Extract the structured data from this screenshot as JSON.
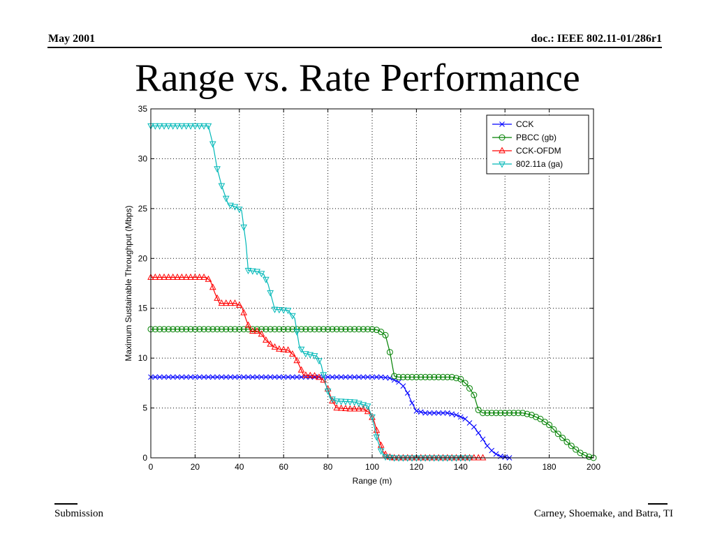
{
  "header": {
    "date": "May 2001",
    "doc": "doc.: IEEE 802.11-01/286r1"
  },
  "slide": {
    "title": "Range vs. Rate Performance"
  },
  "footer": {
    "left": "Submission",
    "right": "Carney, Shoemake, and Batra, TI"
  },
  "chart_data": {
    "type": "line",
    "title": "",
    "xlabel": "Range (m)",
    "ylabel": "Maximum Sustainable Throughput (Mbps)",
    "xlim": [
      0,
      200
    ],
    "ylim": [
      0,
      35
    ],
    "xticks": [
      0,
      20,
      40,
      60,
      80,
      100,
      120,
      140,
      160,
      180,
      200
    ],
    "yticks": [
      0,
      5,
      10,
      15,
      20,
      25,
      30,
      35
    ],
    "grid": true,
    "legend_position": "top-right",
    "series": [
      {
        "name": "CCK",
        "color": "#0000ff",
        "marker": "x",
        "points": [
          [
            0,
            8.1
          ],
          [
            100,
            8.1
          ],
          [
            104,
            8.1
          ],
          [
            108,
            8.0
          ],
          [
            112,
            7.6
          ],
          [
            114,
            7.2
          ],
          [
            116,
            6.5
          ],
          [
            118,
            5.5
          ],
          [
            120,
            4.7
          ],
          [
            124,
            4.5
          ],
          [
            134,
            4.5
          ],
          [
            138,
            4.3
          ],
          [
            142,
            3.9
          ],
          [
            146,
            3.1
          ],
          [
            149,
            2.2
          ],
          [
            152,
            1.2
          ],
          [
            155,
            0.5
          ],
          [
            158,
            0.15
          ],
          [
            162,
            0
          ]
        ]
      },
      {
        "name": "PBCC (gb)",
        "color": "#008000",
        "marker": "o",
        "points": [
          [
            0,
            12.9
          ],
          [
            100,
            12.9
          ],
          [
            103,
            12.8
          ],
          [
            106,
            12.3
          ],
          [
            108,
            10.6
          ],
          [
            110,
            8.2
          ],
          [
            112,
            8.1
          ],
          [
            136,
            8.1
          ],
          [
            140,
            7.9
          ],
          [
            143,
            7.3
          ],
          [
            146,
            6.3
          ],
          [
            148,
            4.8
          ],
          [
            150,
            4.5
          ],
          [
            168,
            4.5
          ],
          [
            172,
            4.3
          ],
          [
            176,
            3.9
          ],
          [
            180,
            3.3
          ],
          [
            184,
            2.4
          ],
          [
            188,
            1.6
          ],
          [
            191,
            1.0
          ],
          [
            194,
            0.5
          ],
          [
            197,
            0.15
          ],
          [
            200,
            0
          ]
        ]
      },
      {
        "name": "CCK-OFDM",
        "color": "#ff0000",
        "marker": "triangle-up",
        "points": [
          [
            0,
            18.1
          ],
          [
            25,
            18.1
          ],
          [
            27,
            17.7
          ],
          [
            29,
            16.5
          ],
          [
            31,
            15.5
          ],
          [
            38,
            15.5
          ],
          [
            41,
            15.2
          ],
          [
            43,
            13.9
          ],
          [
            45,
            12.7
          ],
          [
            48,
            12.7
          ],
          [
            50,
            12.4
          ],
          [
            52,
            11.8
          ],
          [
            55,
            11.2
          ],
          [
            58,
            10.9
          ],
          [
            62,
            10.8
          ],
          [
            65,
            10.2
          ],
          [
            67,
            9.3
          ],
          [
            69,
            8.3
          ],
          [
            75,
            8.2
          ],
          [
            78,
            7.8
          ],
          [
            80,
            6.9
          ],
          [
            82,
            5.7
          ],
          [
            84,
            5.0
          ],
          [
            90,
            4.9
          ],
          [
            96,
            4.9
          ],
          [
            99,
            4.5
          ],
          [
            101,
            3.6
          ],
          [
            103,
            1.9
          ],
          [
            105,
            0.6
          ],
          [
            107,
            0.1
          ],
          [
            110,
            0
          ],
          [
            150,
            0
          ]
        ]
      },
      {
        "name": "802.11a (ga)",
        "color": "#00b8b8",
        "marker": "triangle-down",
        "points": [
          [
            0,
            33.3
          ],
          [
            26,
            33.3
          ],
          [
            28,
            31.5
          ],
          [
            30,
            29.0
          ],
          [
            32,
            27.3
          ],
          [
            35,
            25.4
          ],
          [
            38,
            25.2
          ],
          [
            41,
            24.8
          ],
          [
            43,
            21.5
          ],
          [
            44,
            18.8
          ],
          [
            48,
            18.7
          ],
          [
            51,
            18.4
          ],
          [
            53,
            17.4
          ],
          [
            56,
            14.9
          ],
          [
            62,
            14.8
          ],
          [
            65,
            14.0
          ],
          [
            67,
            11.3
          ],
          [
            69,
            10.5
          ],
          [
            75,
            10.2
          ],
          [
            77,
            9.3
          ],
          [
            79,
            7.4
          ],
          [
            81,
            6.0
          ],
          [
            84,
            5.7
          ],
          [
            92,
            5.6
          ],
          [
            98,
            5.2
          ],
          [
            100,
            4.1
          ],
          [
            102,
            2.1
          ],
          [
            104,
            0.7
          ],
          [
            106,
            0.1
          ],
          [
            110,
            0
          ],
          [
            145,
            0
          ]
        ]
      }
    ]
  }
}
